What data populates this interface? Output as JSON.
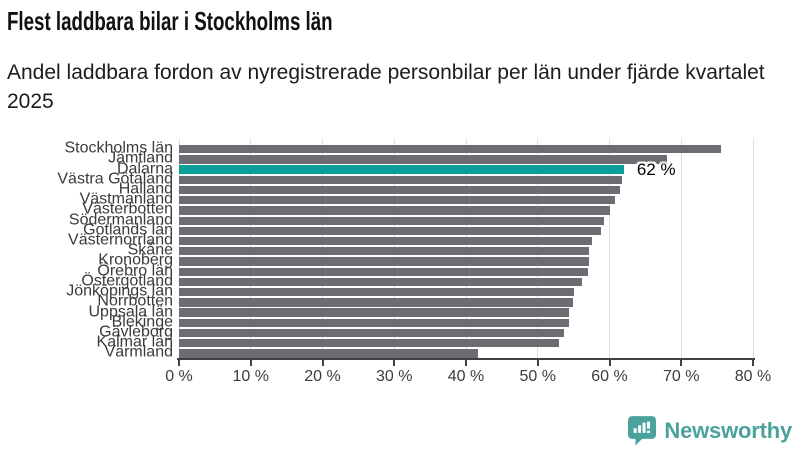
{
  "header": {
    "title": "Flest laddbara bilar i Stockholms län",
    "subtitle": "Andel laddbara fordon av nyregistrerade personbilar per län under fjärde kvartalet 2025"
  },
  "chart_data": {
    "type": "bar",
    "orientation": "horizontal",
    "title": "Flest laddbara bilar i Stockholms län",
    "subtitle": "Andel laddbara fordon av nyregistrerade personbilar per län under fjärde kvartalet 2025",
    "categories": [
      "Stockholms län",
      "Jämtland",
      "Dalarna",
      "Västra Götaland",
      "Halland",
      "Västmanland",
      "Västerbotten",
      "Södermanland",
      "Gotlands län",
      "Västernorrland",
      "Skåne",
      "Kronoberg",
      "Örebro län",
      "Östergötland",
      "Jönköpings län",
      "Norrbotten",
      "Uppsala län",
      "Blekinge",
      "Gävleborg",
      "Kalmar län",
      "Värmland"
    ],
    "values": [
      75.5,
      68,
      62,
      61.8,
      61.4,
      60.8,
      60.1,
      59.2,
      58.8,
      57.5,
      57.2,
      57.1,
      57.0,
      56.1,
      55.0,
      54.9,
      54.4,
      54.3,
      53.7,
      52.9,
      41.7
    ],
    "highlight_category": "Dalarna",
    "highlight_index": 2,
    "highlight_value_label": "62 %",
    "x_ticks": [
      "0 %",
      "10 %",
      "20 %",
      "30 %",
      "40 %",
      "50 %",
      "60 %",
      "70 %",
      "80 %"
    ],
    "xlim": [
      0,
      80
    ],
    "grid": true,
    "legend": false,
    "bar_color": "#6c6c73",
    "highlight_color": "#0a9e99",
    "gridline_color": "#dcdcdc",
    "axis_color": "#414141"
  },
  "footer": {
    "brand": "Newsworthy",
    "brand_color": "#4ba19c",
    "logo_icon": "bar-chart-exclamation-pin-badge"
  }
}
